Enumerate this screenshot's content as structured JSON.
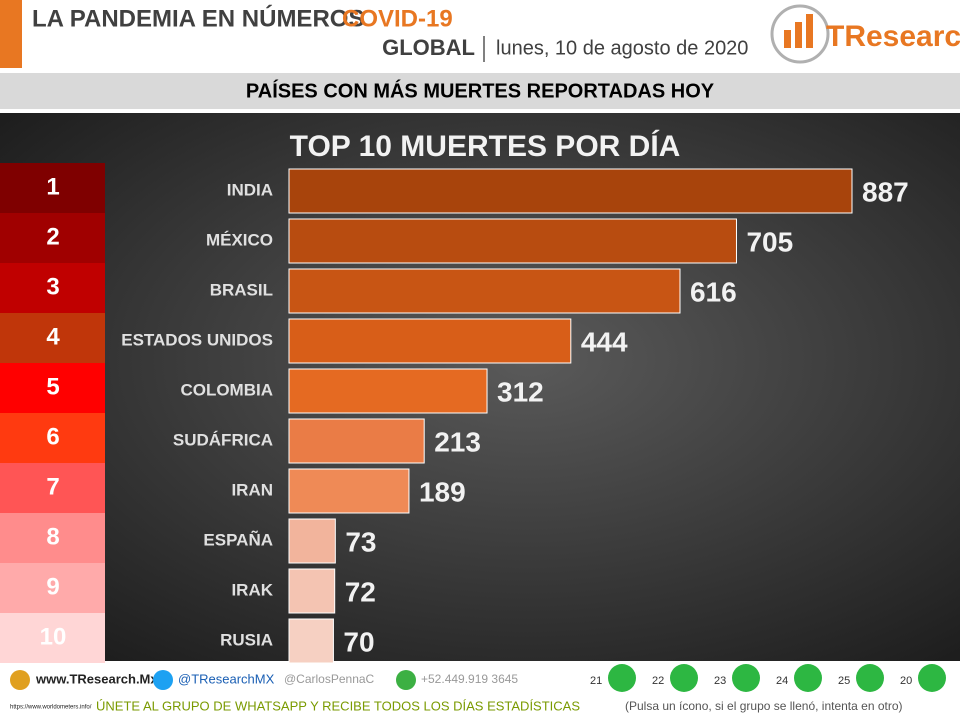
{
  "header": {
    "title": "LA PANDEMIA EN NÚMEROS",
    "title_highlight": "COVID-19",
    "scope": "GLOBAL",
    "date": "lunes, 10 de agosto de 2020",
    "logo": "TResearch"
  },
  "section_title": "PAÍSES CON MÁS MUERTES REPORTADAS HOY",
  "ranking": [
    "1",
    "2",
    "3",
    "4",
    "5",
    "6",
    "7",
    "8",
    "9",
    "10"
  ],
  "ranking_colors": [
    "#7f0000",
    "#a00000",
    "#c00000",
    "#c0360a",
    "#ff0000",
    "#ff3a10",
    "#ff5555",
    "#ff8c8c",
    "#ffaaaa",
    "#ffd6d6"
  ],
  "chart_data": {
    "type": "bar",
    "orientation": "horizontal",
    "title": "TOP 10 MUERTES POR DÍA",
    "categories": [
      "INDIA",
      "MÉXICO",
      "BRASIL",
      "ESTADOS UNIDOS",
      "COLOMBIA",
      "SUDÁFRICA",
      "IRAN",
      "ESPAÑA",
      "IRAK",
      "RUSIA"
    ],
    "values": [
      887,
      705,
      616,
      444,
      312,
      213,
      189,
      73,
      72,
      70
    ],
    "colors": [
      "#a8440c",
      "#b84c10",
      "#c85514",
      "#d85e18",
      "#e56a22",
      "#ea7c46",
      "#ef8a56",
      "#f2b49c",
      "#f4c4b2",
      "#f6d0c2"
    ]
  },
  "footer": {
    "website": "www.TResearch.Mx",
    "twitter": "@TResearchMX",
    "twitter2": "@CarlosPennaC",
    "phone": "+52.449.919 3645",
    "groups": [
      "21",
      "22",
      "23",
      "24",
      "25",
      "20"
    ],
    "source": "https://www.worldometers.info/",
    "cta": "ÚNETE AL GRUPO DE WHATSAPP Y RECIBE TODOS LOS DÍAS ESTADÍSTICAS",
    "cta_note": "(Pulsa un ícono, si el grupo se llenó, intenta en otro)"
  }
}
